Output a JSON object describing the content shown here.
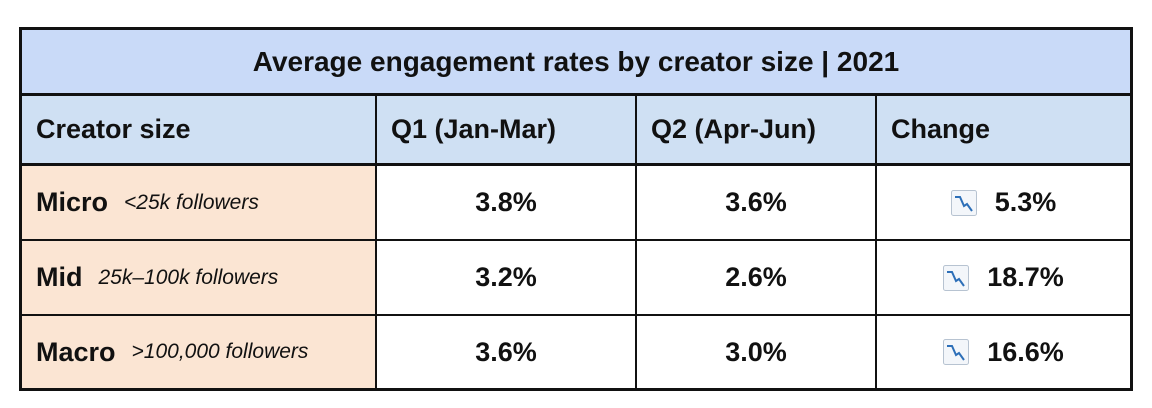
{
  "title": "Average engagement rates by creator size | 2021",
  "headers": [
    "Creator size",
    "Q1 (Jan-Mar)",
    "Q2 (Apr-Jun)",
    "Change"
  ],
  "rows": [
    {
      "size": "Micro",
      "desc": "<25k followers",
      "q1": "3.8%",
      "q2": "3.6%",
      "change": "5.3%",
      "change_icon": "chart-decreasing-icon"
    },
    {
      "size": "Mid",
      "desc": "25k–100k followers",
      "q1": "3.2%",
      "q2": "2.6%",
      "change": "18.7%",
      "change_icon": "chart-decreasing-icon"
    },
    {
      "size": "Macro",
      "desc": ">100,000 followers",
      "q1": "3.6%",
      "q2": "3.0%",
      "change": "16.6%",
      "change_icon": "chart-decreasing-icon"
    }
  ],
  "colors": {
    "title_bg": "#c9daf8",
    "header_bg": "#cfe0f3",
    "size_col_bg": "#fbe5d3",
    "border": "#111111"
  },
  "chart_data": {
    "type": "table",
    "title": "Average engagement rates by creator size | 2021",
    "columns": [
      "Creator size",
      "Q1 (Jan-Mar)",
      "Q2 (Apr-Jun)",
      "Change"
    ],
    "rows": [
      [
        "Micro <25k followers",
        3.8,
        3.6,
        5.3
      ],
      [
        "Mid 25k–100k followers",
        3.2,
        2.6,
        18.7
      ],
      [
        "Macro >100,000 followers",
        3.6,
        3.0,
        16.6
      ]
    ]
  }
}
